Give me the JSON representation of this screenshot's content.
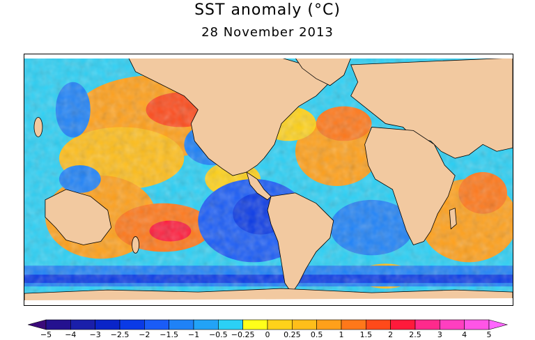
{
  "title": "SST anomaly (°C)",
  "subtitle": "28 November 2013",
  "colors": {
    "land": "#f2c9a0",
    "sea_ice": "#ffffff",
    "coast": "#000000"
  },
  "colorbar": {
    "colors": [
      "#3b0a7a",
      "#24118f",
      "#1a1faa",
      "#0a24c8",
      "#0a3ae6",
      "#1a5cf7",
      "#1f82f7",
      "#22a3f7",
      "#2bd0f5",
      "#ffff1a",
      "#ffd21a",
      "#ffbe1a",
      "#ffa01a",
      "#ff781a",
      "#ff4a1a",
      "#ff1a3b",
      "#ff2a8c",
      "#ff3fc0",
      "#ff55e6",
      "#ff66ff"
    ],
    "ticks": [
      "−5",
      "−4",
      "−3",
      "−2.5",
      "−2",
      "−1.5",
      "−1",
      "−0.5",
      "−0.25",
      "0",
      "0.25",
      "0.5",
      "1",
      "1.5",
      "2",
      "2.5",
      "3",
      "4",
      "5"
    ]
  }
}
